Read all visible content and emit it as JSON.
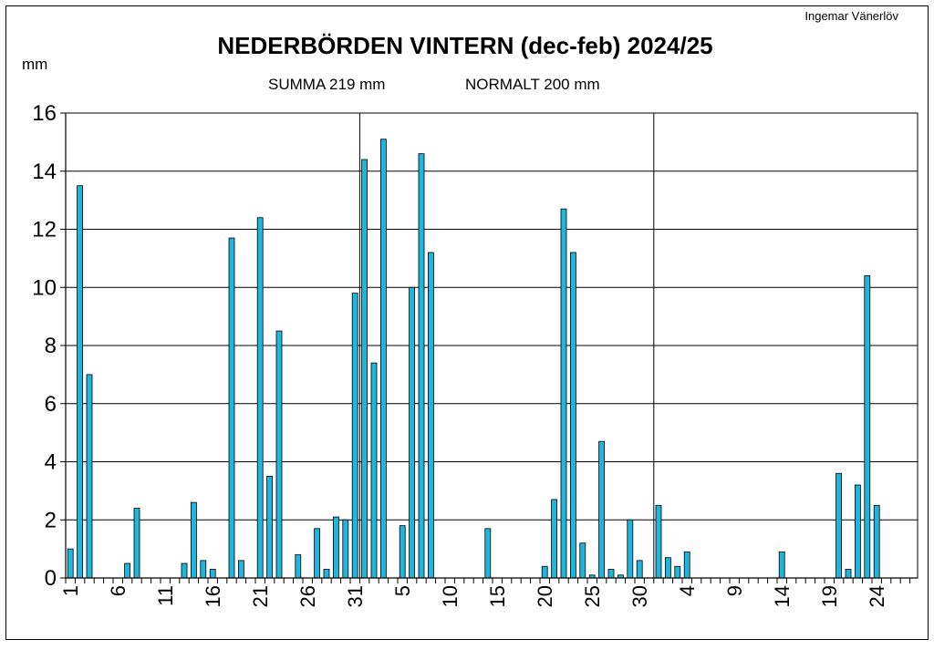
{
  "chart_data": {
    "type": "bar",
    "title": "NEDERBÖRDEN VINTERN (dec-feb) 2024/25",
    "summa_label": "SUMMA  219 mm",
    "normalt_label": "NORMALT  200 mm",
    "credit": "Ingemar Vänerlöv",
    "ylabel": "mm",
    "ylim": [
      0,
      16
    ],
    "yticks": [
      0,
      2,
      4,
      6,
      8,
      10,
      12,
      14,
      16
    ],
    "grid": true,
    "legend": "none",
    "bar_color": "#1fb6dd",
    "months": [
      {
        "name": "dec",
        "days": 31,
        "tick_labels": [
          "1",
          "6",
          "11",
          "16",
          "21",
          "26",
          "31"
        ],
        "values": [
          1.0,
          13.5,
          7.0,
          0,
          0,
          0,
          0.5,
          2.4,
          0,
          0,
          0,
          0,
          0.5,
          2.6,
          0.6,
          0.3,
          0,
          11.7,
          0.6,
          0,
          12.4,
          3.5,
          8.5,
          0,
          0.8,
          0,
          1.7,
          0.3,
          2.1,
          2.0,
          9.8
        ]
      },
      {
        "name": "jan",
        "days": 31,
        "tick_labels": [
          "5",
          "10",
          "15",
          "20",
          "25",
          "30"
        ],
        "values": [
          14.4,
          7.4,
          15.1,
          0,
          1.8,
          10.0,
          14.6,
          11.2,
          0,
          0,
          0,
          0,
          0,
          1.7,
          0,
          0,
          0,
          0,
          0,
          0.4,
          2.7,
          12.7,
          11.2,
          1.2,
          0.1,
          4.7,
          0.3,
          0.1,
          2.0,
          0.6,
          0
        ]
      },
      {
        "name": "feb",
        "days": 28,
        "tick_labels": [
          "4",
          "9",
          "14",
          "19",
          "24"
        ],
        "values": [
          2.5,
          0.7,
          0.4,
          0.9,
          0,
          0,
          0,
          0,
          0,
          0,
          0,
          0,
          0,
          0.9,
          0,
          0,
          0,
          0,
          0,
          3.6,
          0.3,
          3.2,
          10.4,
          2.5,
          0,
          0,
          0,
          0
        ]
      }
    ]
  }
}
